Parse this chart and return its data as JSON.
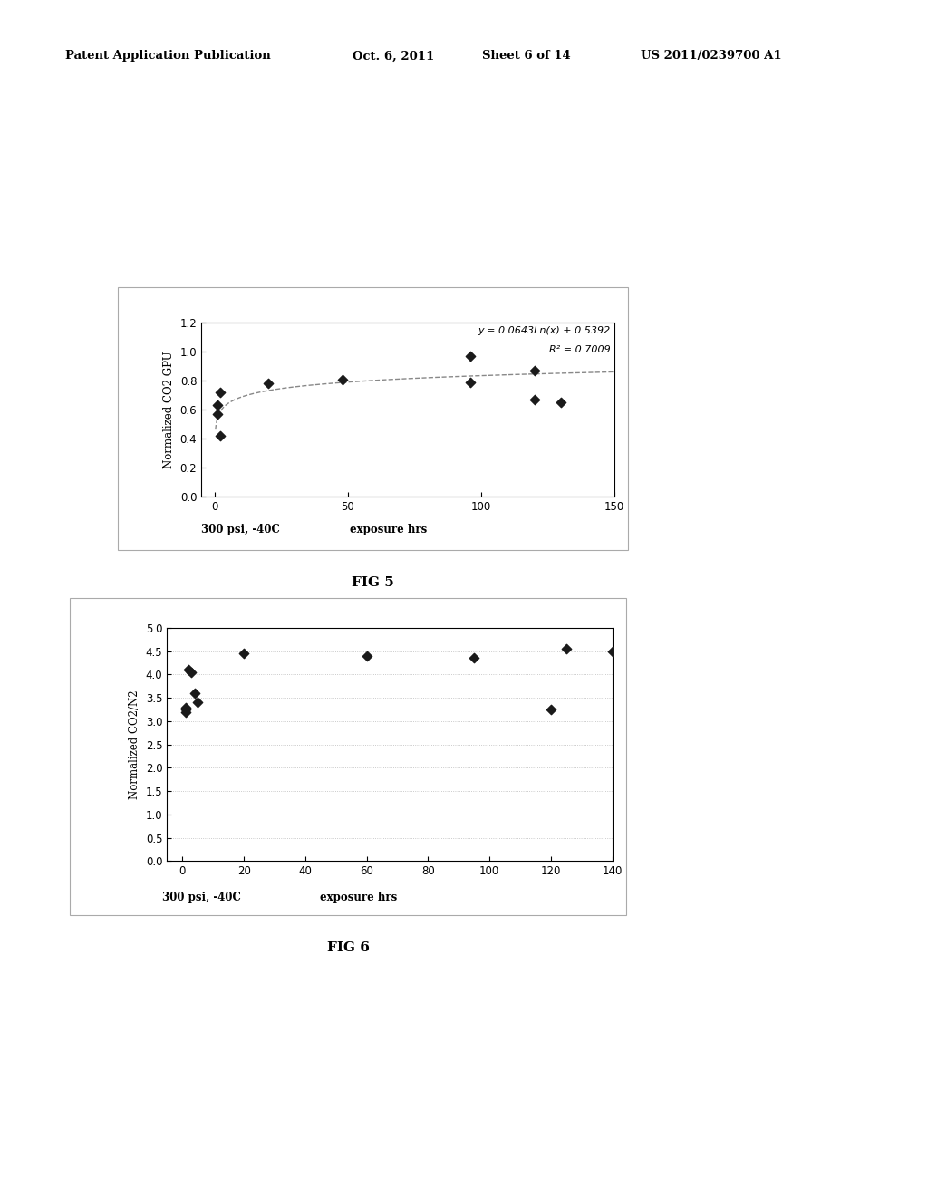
{
  "fig5": {
    "title": "FIG 5",
    "ylabel": "Normalized CO2 GPU",
    "xlabel_left": "300 psi, -40C",
    "xlabel_right": "exposure hrs",
    "xlim": [
      -5,
      150
    ],
    "ylim": [
      0,
      1.2
    ],
    "yticks": [
      0,
      0.2,
      0.4,
      0.6,
      0.8,
      1.0,
      1.2
    ],
    "xticks": [
      0,
      50,
      100,
      150
    ],
    "scatter_x": [
      1,
      1,
      2,
      2,
      20,
      48,
      96,
      96,
      120,
      120,
      130
    ],
    "scatter_y": [
      0.57,
      0.63,
      0.42,
      0.72,
      0.78,
      0.81,
      0.79,
      0.97,
      0.87,
      0.67,
      0.65
    ],
    "fit_eq": "y = 0.0643Ln(x) + 0.5392",
    "fit_r2": "R² = 0.7009",
    "fit_a": 0.0643,
    "fit_b": 0.5392,
    "fit_xmin": 0.3,
    "fit_xmax": 150,
    "grid_y_minor": [
      0.2,
      0.4,
      0.6,
      0.8,
      1.0,
      1.2
    ],
    "grid_color": "#bbbbbb",
    "dot_color": "#1a1a1a",
    "line_color": "#888888"
  },
  "fig6": {
    "title": "FIG 6",
    "ylabel": "Normalized CO2/N2",
    "xlabel_left": "300 psi, -40C",
    "xlabel_right": "exposure hrs",
    "xlim": [
      -5,
      140
    ],
    "ylim": [
      0,
      5
    ],
    "yticks": [
      0,
      0.5,
      1.0,
      1.5,
      2.0,
      2.5,
      3.0,
      3.5,
      4.0,
      4.5,
      5.0
    ],
    "xticks": [
      0,
      20,
      40,
      60,
      80,
      100,
      120,
      140
    ],
    "scatter_x": [
      1,
      1,
      1,
      2,
      3,
      4,
      5,
      20,
      60,
      95,
      120,
      125,
      140
    ],
    "scatter_y": [
      3.3,
      3.25,
      3.2,
      4.1,
      4.05,
      3.6,
      3.4,
      4.45,
      4.4,
      4.35,
      3.25,
      4.55,
      4.5
    ],
    "grid_y_minor": [
      0.5,
      1.0,
      1.5,
      2.0,
      2.5,
      3.0,
      3.5,
      4.0,
      4.5,
      5.0
    ],
    "grid_color": "#bbbbbb",
    "dot_color": "#1a1a1a"
  },
  "bg_color": "#ffffff"
}
